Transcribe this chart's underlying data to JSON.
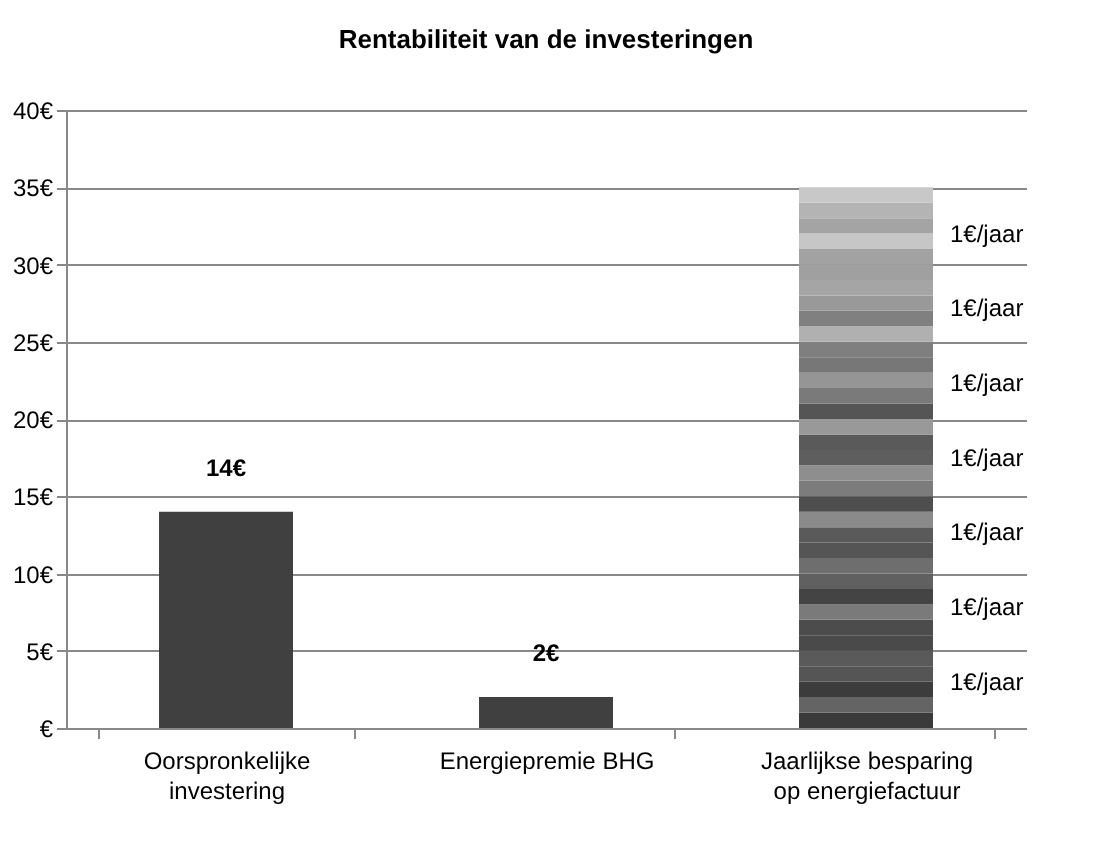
{
  "chart_data": {
    "type": "bar",
    "title": "Rentabiliteit van de investeringen",
    "stacked": true,
    "grid": "y",
    "legend": false,
    "categories": [
      "Oorspronkelijke investering",
      "Energiepremie BHG",
      "Jaarlijkse besparing op energiefactuur"
    ],
    "ylim": [
      0,
      40
    ],
    "yticks": [
      {
        "value": 0,
        "label": "€"
      },
      {
        "value": 5,
        "label": "5€"
      },
      {
        "value": 10,
        "label": "10€"
      },
      {
        "value": 15,
        "label": "15€"
      },
      {
        "value": 20,
        "label": "20€"
      },
      {
        "value": 25,
        "label": "25€"
      },
      {
        "value": 30,
        "label": "30€"
      },
      {
        "value": 35,
        "label": "35€"
      },
      {
        "value": 40,
        "label": "40€"
      }
    ],
    "series": [
      {
        "color": "#404040",
        "values": [
          14,
          2,
          null
        ],
        "value_labels": [
          "14€",
          "2€",
          null
        ]
      },
      {
        "color": "#3a3a3a",
        "values": [
          null,
          null,
          1
        ]
      },
      {
        "color": "#646464",
        "values": [
          null,
          null,
          1
        ]
      },
      {
        "color": "#3c3c3c",
        "values": [
          null,
          null,
          1
        ]
      },
      {
        "color": "#555555",
        "values": [
          null,
          null,
          1
        ]
      },
      {
        "color": "#5a5a5a",
        "values": [
          null,
          null,
          1
        ]
      },
      {
        "color": "#4a4a4a",
        "values": [
          null,
          null,
          1
        ]
      },
      {
        "color": "#4c4c4c",
        "values": [
          null,
          null,
          1
        ]
      },
      {
        "color": "#7a7a7a",
        "values": [
          null,
          null,
          1
        ]
      },
      {
        "color": "#444444",
        "values": [
          null,
          null,
          1
        ]
      },
      {
        "color": "#606060",
        "values": [
          null,
          null,
          1
        ]
      },
      {
        "color": "#6e6e6e",
        "values": [
          null,
          null,
          1
        ]
      },
      {
        "color": "#555555",
        "values": [
          null,
          null,
          1
        ]
      },
      {
        "color": "#5a5a5a",
        "values": [
          null,
          null,
          1
        ]
      },
      {
        "color": "#8a8a8a",
        "values": [
          null,
          null,
          1
        ]
      },
      {
        "color": "#4e4e4e",
        "values": [
          null,
          null,
          1
        ]
      },
      {
        "color": "#7c7c7c",
        "values": [
          null,
          null,
          1
        ]
      },
      {
        "color": "#8e8e8e",
        "values": [
          null,
          null,
          1
        ]
      },
      {
        "color": "#5e5e5e",
        "values": [
          null,
          null,
          1
        ]
      },
      {
        "color": "#5a5a5a",
        "values": [
          null,
          null,
          1
        ]
      },
      {
        "color": "#999999",
        "values": [
          null,
          null,
          1
        ]
      },
      {
        "color": "#555555",
        "values": [
          null,
          null,
          1
        ]
      },
      {
        "color": "#7a7a7a",
        "values": [
          null,
          null,
          1
        ]
      },
      {
        "color": "#959595",
        "values": [
          null,
          null,
          1
        ]
      },
      {
        "color": "#777777",
        "values": [
          null,
          null,
          1
        ]
      },
      {
        "color": "#7f7f7f",
        "values": [
          null,
          null,
          1
        ]
      },
      {
        "color": "#b0b0b0",
        "values": [
          null,
          null,
          1
        ]
      },
      {
        "color": "#808080",
        "values": [
          null,
          null,
          1
        ]
      },
      {
        "color": "#999999",
        "values": [
          null,
          null,
          1
        ]
      },
      {
        "color": "#a5a5a5",
        "values": [
          null,
          null,
          1
        ]
      },
      {
        "color": "#a0a0a0",
        "values": [
          null,
          null,
          1
        ]
      },
      {
        "color": "#a2a2a2",
        "values": [
          null,
          null,
          1
        ]
      },
      {
        "color": "#c6c6c6",
        "values": [
          null,
          null,
          1
        ]
      },
      {
        "color": "#a4a4a4",
        "values": [
          null,
          null,
          1
        ]
      },
      {
        "color": "#b4b4b4",
        "values": [
          null,
          null,
          1
        ]
      },
      {
        "color": "#c8c8c8",
        "values": [
          null,
          null,
          1
        ]
      }
    ],
    "annotations": [
      "1€/jaar",
      "1€/jaar",
      "1€/jaar",
      "1€/jaar",
      "1€/jaar",
      "1€/jaar",
      "1€/jaar"
    ]
  }
}
